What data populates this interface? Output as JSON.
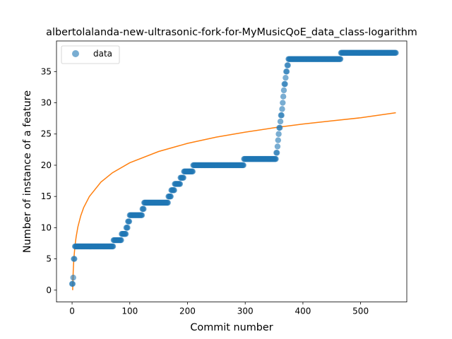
{
  "chart_data": {
    "type": "scatter",
    "title": "albertolalanda-new-ultrasonic-fork-for-MyMusicQoE_data_class-logarithm",
    "xlabel": "Commit number",
    "ylabel": "Number of instance of a feature",
    "xlim": [
      -27,
      580
    ],
    "ylim": [
      -1.9,
      39.9
    ],
    "xticks": [
      0,
      100,
      200,
      300,
      400,
      500
    ],
    "yticks": [
      0,
      5,
      10,
      15,
      20,
      25,
      30,
      35
    ],
    "grid": false,
    "legend_position": "top-left",
    "colors": {
      "data": "#1f77b4",
      "fit": "#ff7f0e"
    },
    "series": [
      {
        "name": "data",
        "kind": "points",
        "steps": [
          [
            0,
            1
          ],
          [
            1,
            1
          ],
          [
            2,
            2
          ],
          [
            3,
            5
          ],
          [
            4,
            5
          ],
          [
            5,
            7
          ],
          [
            72,
            8
          ],
          [
            86,
            9
          ],
          [
            94,
            10
          ],
          [
            97,
            11
          ],
          [
            100,
            12
          ],
          [
            122,
            13
          ],
          [
            125,
            14
          ],
          [
            167,
            15
          ],
          [
            172,
            16
          ],
          [
            178,
            17
          ],
          [
            188,
            18
          ],
          [
            194,
            19
          ],
          [
            210,
            20
          ],
          [
            298,
            21
          ],
          [
            354,
            22
          ],
          [
            356,
            23
          ],
          [
            357,
            24
          ],
          [
            358,
            25
          ],
          [
            359,
            26
          ],
          [
            361,
            27
          ],
          [
            362,
            28
          ],
          [
            364,
            29
          ],
          [
            365,
            30
          ],
          [
            366,
            31
          ],
          [
            367,
            32
          ],
          [
            368,
            33
          ],
          [
            370,
            34
          ],
          [
            371,
            35
          ],
          [
            373,
            36
          ],
          [
            375,
            37
          ],
          [
            466,
            38
          ]
        ],
        "last_x": 561
      },
      {
        "kind": "line",
        "fit": "logarithm",
        "points": [
          [
            1,
            0
          ],
          [
            2,
            3.1
          ],
          [
            3,
            4.9
          ],
          [
            5,
            7.1
          ],
          [
            7,
            8.5
          ],
          [
            10,
            10.1
          ],
          [
            15,
            11.9
          ],
          [
            20,
            13.2
          ],
          [
            30,
            15.0
          ],
          [
            50,
            17.3
          ],
          [
            70,
            18.8
          ],
          [
            100,
            20.4
          ],
          [
            150,
            22.2
          ],
          [
            200,
            23.5
          ],
          [
            250,
            24.5
          ],
          [
            300,
            25.3
          ],
          [
            350,
            26.0
          ],
          [
            400,
            26.6
          ],
          [
            450,
            27.1
          ],
          [
            500,
            27.6
          ],
          [
            561,
            28.4
          ]
        ]
      }
    ]
  }
}
